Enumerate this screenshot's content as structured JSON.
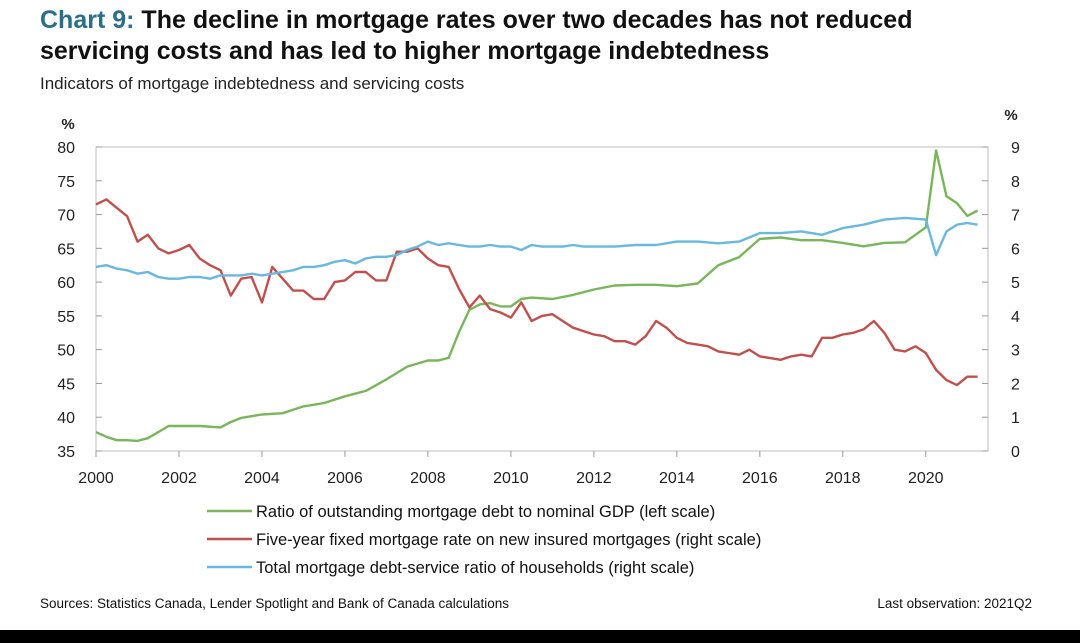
{
  "header": {
    "chart_number": "Chart 9:",
    "title_line1": "The decline in mortgage rates over two decades has not reduced",
    "title_line2": "servicing costs and has led to higher mortgage indebtedness",
    "subtitle": "Indicators of mortgage indebtedness and servicing costs"
  },
  "footer": {
    "sources": "Sources: Statistics Canada, Lender Spotlight and Bank of Canada calculations",
    "last_observation": "Last observation: 2021Q2"
  },
  "colors": {
    "green": "#7ab55c",
    "red": "#c0504d",
    "blue": "#6ab7df"
  },
  "chart_data": {
    "type": "line",
    "title": "Indicators of mortgage indebtedness and servicing costs",
    "xlabel": "",
    "xlim": [
      2000,
      2021.5
    ],
    "x_ticks": [
      "2000",
      "2002",
      "2004",
      "2006",
      "2008",
      "2010",
      "2012",
      "2014",
      "2016",
      "2018",
      "2020"
    ],
    "y_left": {
      "label": "%",
      "lim": [
        35,
        80
      ],
      "ticks": [
        "35",
        "40",
        "45",
        "50",
        "55",
        "60",
        "65",
        "70",
        "75",
        "80"
      ]
    },
    "y_right": {
      "label": "%",
      "lim": [
        0,
        9
      ],
      "ticks": [
        "0",
        "1",
        "2",
        "3",
        "4",
        "5",
        "6",
        "7",
        "8",
        "9"
      ]
    },
    "series": [
      {
        "name": "Ratio of outstanding mortgage debt to nominal GDP (left scale)",
        "axis": "left",
        "color": "#7ab55c",
        "x": [
          2000,
          2000.25,
          2000.5,
          2000.75,
          2001,
          2001.25,
          2001.5,
          2001.75,
          2002,
          2002.5,
          2003,
          2003.25,
          2003.5,
          2004,
          2004.5,
          2005,
          2005.5,
          2006,
          2006.5,
          2007,
          2007.5,
          2008,
          2008.25,
          2008.5,
          2008.75,
          2009,
          2009.25,
          2009.5,
          2009.75,
          2010,
          2010.25,
          2010.5,
          2011,
          2011.5,
          2012,
          2012.5,
          2013,
          2013.5,
          2014,
          2014.5,
          2015,
          2015.5,
          2016,
          2016.5,
          2017,
          2017.5,
          2018,
          2018.5,
          2019,
          2019.5,
          2020,
          2020.25,
          2020.5,
          2020.75,
          2021,
          2021.25
        ],
        "values": [
          37.8,
          37.1,
          36.6,
          36.6,
          36.5,
          36.9,
          37.8,
          38.7,
          38.7,
          38.7,
          38.5,
          39.3,
          39.9,
          40.4,
          40.6,
          41.6,
          42.1,
          43.1,
          43.9,
          45.6,
          47.5,
          48.4,
          48.4,
          48.8,
          52.6,
          55.9,
          56.7,
          56.9,
          56.4,
          56.4,
          57.5,
          57.7,
          57.5,
          58.1,
          58.9,
          59.5,
          59.6,
          59.6,
          59.4,
          59.8,
          62.5,
          63.7,
          66.4,
          66.6,
          66.2,
          66.2,
          65.8,
          65.3,
          65.8,
          65.9,
          68.1,
          79.5,
          72.7,
          71.7,
          69.8,
          70.6
        ]
      },
      {
        "name": "Five-year fixed mortgage rate on new insured mortgages (right scale)",
        "axis": "right",
        "color": "#c0504d",
        "x": [
          2000,
          2000.25,
          2000.5,
          2000.75,
          2001,
          2001.25,
          2001.5,
          2001.75,
          2002,
          2002.25,
          2002.5,
          2002.75,
          2003,
          2003.25,
          2003.5,
          2003.75,
          2004,
          2004.25,
          2004.5,
          2004.75,
          2005,
          2005.25,
          2005.5,
          2005.75,
          2006,
          2006.25,
          2006.5,
          2006.75,
          2007,
          2007.25,
          2007.5,
          2007.75,
          2008,
          2008.25,
          2008.5,
          2008.75,
          2009,
          2009.25,
          2009.5,
          2009.75,
          2010,
          2010.25,
          2010.5,
          2010.75,
          2011,
          2011.25,
          2011.5,
          2011.75,
          2012,
          2012.25,
          2012.5,
          2012.75,
          2013,
          2013.25,
          2013.5,
          2013.75,
          2014,
          2014.25,
          2014.5,
          2014.75,
          2015,
          2015.25,
          2015.5,
          2015.75,
          2016,
          2016.25,
          2016.5,
          2016.75,
          2017,
          2017.25,
          2017.5,
          2017.75,
          2018,
          2018.25,
          2018.5,
          2018.75,
          2019,
          2019.25,
          2019.5,
          2019.75,
          2020,
          2020.25,
          2020.5,
          2020.75,
          2021,
          2021.25
        ],
        "values": [
          7.3,
          7.45,
          7.2,
          6.95,
          6.2,
          6.4,
          6.0,
          5.85,
          5.95,
          6.1,
          5.7,
          5.5,
          5.35,
          4.6,
          5.1,
          5.15,
          4.4,
          5.45,
          5.1,
          4.75,
          4.75,
          4.5,
          4.5,
          5.0,
          5.05,
          5.3,
          5.3,
          5.05,
          5.05,
          5.9,
          5.9,
          6.0,
          5.7,
          5.5,
          5.45,
          4.8,
          4.25,
          4.6,
          4.2,
          4.1,
          3.95,
          4.4,
          3.85,
          4.0,
          4.05,
          3.85,
          3.65,
          3.55,
          3.45,
          3.4,
          3.25,
          3.25,
          3.15,
          3.4,
          3.85,
          3.65,
          3.35,
          3.2,
          3.15,
          3.1,
          2.95,
          2.9,
          2.85,
          3.0,
          2.8,
          2.75,
          2.7,
          2.8,
          2.85,
          2.8,
          3.35,
          3.35,
          3.45,
          3.5,
          3.6,
          3.85,
          3.5,
          3.0,
          2.95,
          3.1,
          2.9,
          2.4,
          2.1,
          1.95,
          2.2,
          2.2
        ]
      },
      {
        "name": "Total mortgage debt-service ratio of households (right scale)",
        "axis": "right",
        "color": "#6ab7df",
        "x": [
          2000,
          2000.25,
          2000.5,
          2000.75,
          2001,
          2001.25,
          2001.5,
          2001.75,
          2002,
          2002.25,
          2002.5,
          2002.75,
          2003,
          2003.25,
          2003.5,
          2003.75,
          2004,
          2004.25,
          2004.5,
          2004.75,
          2005,
          2005.25,
          2005.5,
          2005.75,
          2006,
          2006.25,
          2006.5,
          2006.75,
          2007,
          2007.25,
          2007.5,
          2007.75,
          2008,
          2008.25,
          2008.5,
          2008.75,
          2009,
          2009.25,
          2009.5,
          2009.75,
          2010,
          2010.25,
          2010.5,
          2010.75,
          2011,
          2011.25,
          2011.5,
          2011.75,
          2012,
          2012.5,
          2013,
          2013.5,
          2014,
          2014.5,
          2015,
          2015.5,
          2016,
          2016.5,
          2017,
          2017.5,
          2018,
          2018.5,
          2019,
          2019.5,
          2020,
          2020.25,
          2020.5,
          2020.75,
          2021,
          2021.25
        ],
        "values": [
          5.45,
          5.5,
          5.4,
          5.35,
          5.25,
          5.3,
          5.15,
          5.1,
          5.1,
          5.15,
          5.15,
          5.1,
          5.2,
          5.2,
          5.2,
          5.25,
          5.2,
          5.25,
          5.3,
          5.35,
          5.45,
          5.45,
          5.5,
          5.6,
          5.65,
          5.55,
          5.7,
          5.75,
          5.75,
          5.8,
          5.95,
          6.05,
          6.2,
          6.1,
          6.15,
          6.1,
          6.05,
          6.05,
          6.1,
          6.05,
          6.05,
          5.95,
          6.1,
          6.05,
          6.05,
          6.05,
          6.1,
          6.05,
          6.05,
          6.05,
          6.1,
          6.1,
          6.2,
          6.2,
          6.15,
          6.2,
          6.45,
          6.45,
          6.5,
          6.4,
          6.6,
          6.7,
          6.85,
          6.9,
          6.85,
          5.8,
          6.5,
          6.7,
          6.75,
          6.7
        ]
      }
    ]
  }
}
